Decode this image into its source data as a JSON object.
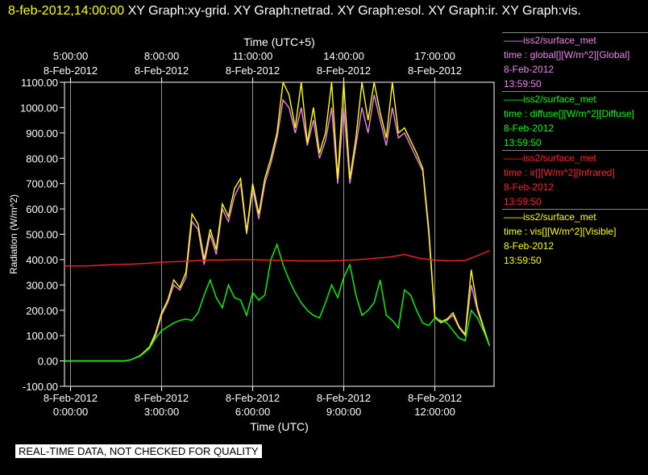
{
  "header": {
    "timestamp": "8-feb-2012,14:00:00",
    "titles": "XY Graph:xy-grid.  XY Graph:netrad.  XY Graph:esol.  XY Graph:ir.  XY Graph:vis."
  },
  "colors": {
    "global": "#ee82ee",
    "diffuse": "#00ff00",
    "ir": "#ff2020",
    "vis": "#ffff00",
    "grid": "#bbbbbb"
  },
  "legend": [
    {
      "source": "iss2/surface_met",
      "field": "time : global[][W/m^2][Global]",
      "date": "8-Feb-2012",
      "time": "13:59:50",
      "color": "#ee82ee"
    },
    {
      "source": "iss2/surface_met",
      "field": "time : diffuse[][W/m^2][Diffuse]",
      "date": "8-Feb-2012",
      "time": "13:59:50",
      "color": "#00ff00"
    },
    {
      "source": "iss2/surface_met",
      "field": "time : ir[][W/m^2][Infrared]",
      "date": "8-Feb-2012",
      "time": "13:59:50",
      "color": "#ff2020"
    },
    {
      "source": "iss2/surface_met",
      "field": "time : vis[][W/m^2][Visible]",
      "date": "8-Feb-2012",
      "time": "13:59:50",
      "color": "#ffff00"
    }
  ],
  "notice": "REAL-TIME DATA, NOT CHECKED FOR QUALITY",
  "chart_data": {
    "type": "line",
    "xlabel": "Time (UTC)",
    "x2label": "Time (UTC+5)",
    "ylabel": "Radiation (W/m^2)",
    "xlim": [
      -0.2,
      13.95
    ],
    "ylim": [
      -100,
      1100
    ],
    "yticks": [
      "-100.00",
      "0.00",
      "100.00",
      "200.00",
      "300.00",
      "400.00",
      "500.00",
      "600.00",
      "700.00",
      "800.00",
      "900.00",
      "1000.00",
      "1100.00"
    ],
    "yticks_values": [
      -100,
      0,
      100,
      200,
      300,
      400,
      500,
      600,
      700,
      800,
      900,
      1000,
      1100
    ],
    "xticks": [
      {
        "hours": 0,
        "date": "8-Feb-2012",
        "time": "0:00:00"
      },
      {
        "hours": 3,
        "date": "8-Feb-2012",
        "time": "3:00:00"
      },
      {
        "hours": 6,
        "date": "8-Feb-2012",
        "time": "6:00:00"
      },
      {
        "hours": 9,
        "date": "8-Feb-2012",
        "time": "9:00:00"
      },
      {
        "hours": 12,
        "date": "8-Feb-2012",
        "time": "12:00:00"
      }
    ],
    "x2ticks": [
      {
        "hours": 0,
        "time": "5:00:00",
        "date": "8-Feb-2012"
      },
      {
        "hours": 3,
        "time": "8:00:00",
        "date": "8-Feb-2012"
      },
      {
        "hours": 6,
        "time": "11:00:00",
        "date": "8-Feb-2012"
      },
      {
        "hours": 9,
        "time": "14:00:00",
        "date": "8-Feb-2012"
      },
      {
        "hours": 12,
        "time": "17:00:00",
        "date": "8-Feb-2012"
      }
    ],
    "grid": true,
    "series": [
      {
        "name": "global",
        "color": "#ee82ee",
        "x": [
          -0.2,
          1.8,
          2.0,
          2.3,
          2.6,
          2.8,
          3.0,
          3.2,
          3.4,
          3.6,
          3.8,
          4.0,
          4.2,
          4.4,
          4.6,
          4.8,
          5.0,
          5.2,
          5.4,
          5.6,
          5.8,
          6.0,
          6.2,
          6.4,
          6.6,
          6.8,
          7.0,
          7.2,
          7.4,
          7.6,
          7.8,
          8.0,
          8.2,
          8.4,
          8.6,
          8.8,
          9.0,
          9.2,
          9.4,
          9.6,
          9.8,
          10.0,
          10.2,
          10.4,
          10.6,
          10.8,
          11.0,
          11.2,
          11.4,
          11.6,
          11.8,
          12.0,
          12.2,
          12.4,
          12.6,
          12.8,
          13.0,
          13.2,
          13.4,
          13.6,
          13.8
        ],
        "y": [
          0,
          0,
          5,
          20,
          50,
          100,
          180,
          230,
          300,
          280,
          330,
          550,
          520,
          380,
          500,
          420,
          600,
          550,
          650,
          700,
          500,
          680,
          560,
          700,
          780,
          880,
          1030,
          1000,
          900,
          1000,
          850,
          950,
          800,
          870,
          1000,
          700,
          1000,
          700,
          850,
          1000,
          900,
          1050,
          950,
          850,
          1000,
          880,
          900,
          850,
          800,
          750,
          500,
          170,
          150,
          160,
          180,
          130,
          100,
          300,
          200,
          130,
          60
        ]
      },
      {
        "name": "vis",
        "color": "#ffff00",
        "x": [
          -0.2,
          1.8,
          2.0,
          2.3,
          2.6,
          2.8,
          3.0,
          3.2,
          3.4,
          3.6,
          3.8,
          4.0,
          4.2,
          4.4,
          4.6,
          4.8,
          5.0,
          5.2,
          5.4,
          5.6,
          5.8,
          6.0,
          6.2,
          6.4,
          6.6,
          6.8,
          7.0,
          7.2,
          7.4,
          7.6,
          7.8,
          8.0,
          8.2,
          8.4,
          8.6,
          8.8,
          9.0,
          9.2,
          9.4,
          9.6,
          9.8,
          10.0,
          10.2,
          10.4,
          10.6,
          10.8,
          11.0,
          11.2,
          11.4,
          11.6,
          11.8,
          12.0,
          12.2,
          12.4,
          12.6,
          12.8,
          13.0,
          13.2,
          13.4,
          13.6,
          13.8
        ],
        "y": [
          0,
          0,
          5,
          22,
          55,
          110,
          190,
          240,
          320,
          290,
          350,
          580,
          540,
          400,
          520,
          440,
          620,
          570,
          680,
          720,
          510,
          700,
          580,
          720,
          800,
          900,
          1100,
          1050,
          920,
          1100,
          860,
          1000,
          820,
          900,
          1100,
          720,
          1100,
          720,
          880,
          1100,
          950,
          1100,
          980,
          880,
          1100,
          900,
          920,
          870,
          820,
          760,
          520,
          175,
          155,
          165,
          190,
          135,
          105,
          360,
          210,
          135,
          60
        ]
      },
      {
        "name": "diffuse",
        "color": "#00ff00",
        "x": [
          -0.2,
          1.8,
          2.0,
          2.3,
          2.6,
          2.8,
          3.0,
          3.2,
          3.4,
          3.6,
          3.8,
          4.0,
          4.2,
          4.4,
          4.6,
          4.8,
          5.0,
          5.2,
          5.4,
          5.6,
          5.8,
          6.0,
          6.2,
          6.4,
          6.6,
          6.8,
          7.0,
          7.2,
          7.4,
          7.6,
          7.8,
          8.0,
          8.2,
          8.4,
          8.6,
          8.8,
          9.0,
          9.2,
          9.4,
          9.6,
          9.8,
          10.0,
          10.2,
          10.4,
          10.6,
          10.8,
          11.0,
          11.2,
          11.4,
          11.6,
          11.8,
          12.0,
          12.2,
          12.4,
          12.6,
          12.8,
          13.0,
          13.2,
          13.4,
          13.6,
          13.8
        ],
        "y": [
          0,
          0,
          5,
          20,
          50,
          90,
          120,
          135,
          150,
          160,
          165,
          160,
          190,
          260,
          320,
          250,
          210,
          300,
          250,
          240,
          180,
          270,
          240,
          260,
          400,
          460,
          380,
          320,
          270,
          230,
          200,
          180,
          170,
          230,
          300,
          250,
          330,
          380,
          260,
          180,
          200,
          230,
          320,
          180,
          160,
          130,
          280,
          260,
          200,
          150,
          140,
          170,
          160,
          150,
          120,
          90,
          80,
          200,
          170,
          120,
          60
        ]
      },
      {
        "name": "ir",
        "color": "#ff2020",
        "x": [
          -0.2,
          0.5,
          1.0,
          1.5,
          2.0,
          2.5,
          3.0,
          3.5,
          4.0,
          4.5,
          5.0,
          5.5,
          6.0,
          6.5,
          7.0,
          7.5,
          8.0,
          8.5,
          9.0,
          9.5,
          10.0,
          10.5,
          11.0,
          11.5,
          12.0,
          12.5,
          13.0,
          13.5,
          13.8
        ],
        "y": [
          375,
          375,
          378,
          380,
          382,
          385,
          390,
          392,
          395,
          398,
          398,
          400,
          400,
          398,
          397,
          395,
          395,
          395,
          397,
          400,
          405,
          410,
          420,
          405,
          398,
          395,
          397,
          420,
          435
        ]
      }
    ]
  }
}
